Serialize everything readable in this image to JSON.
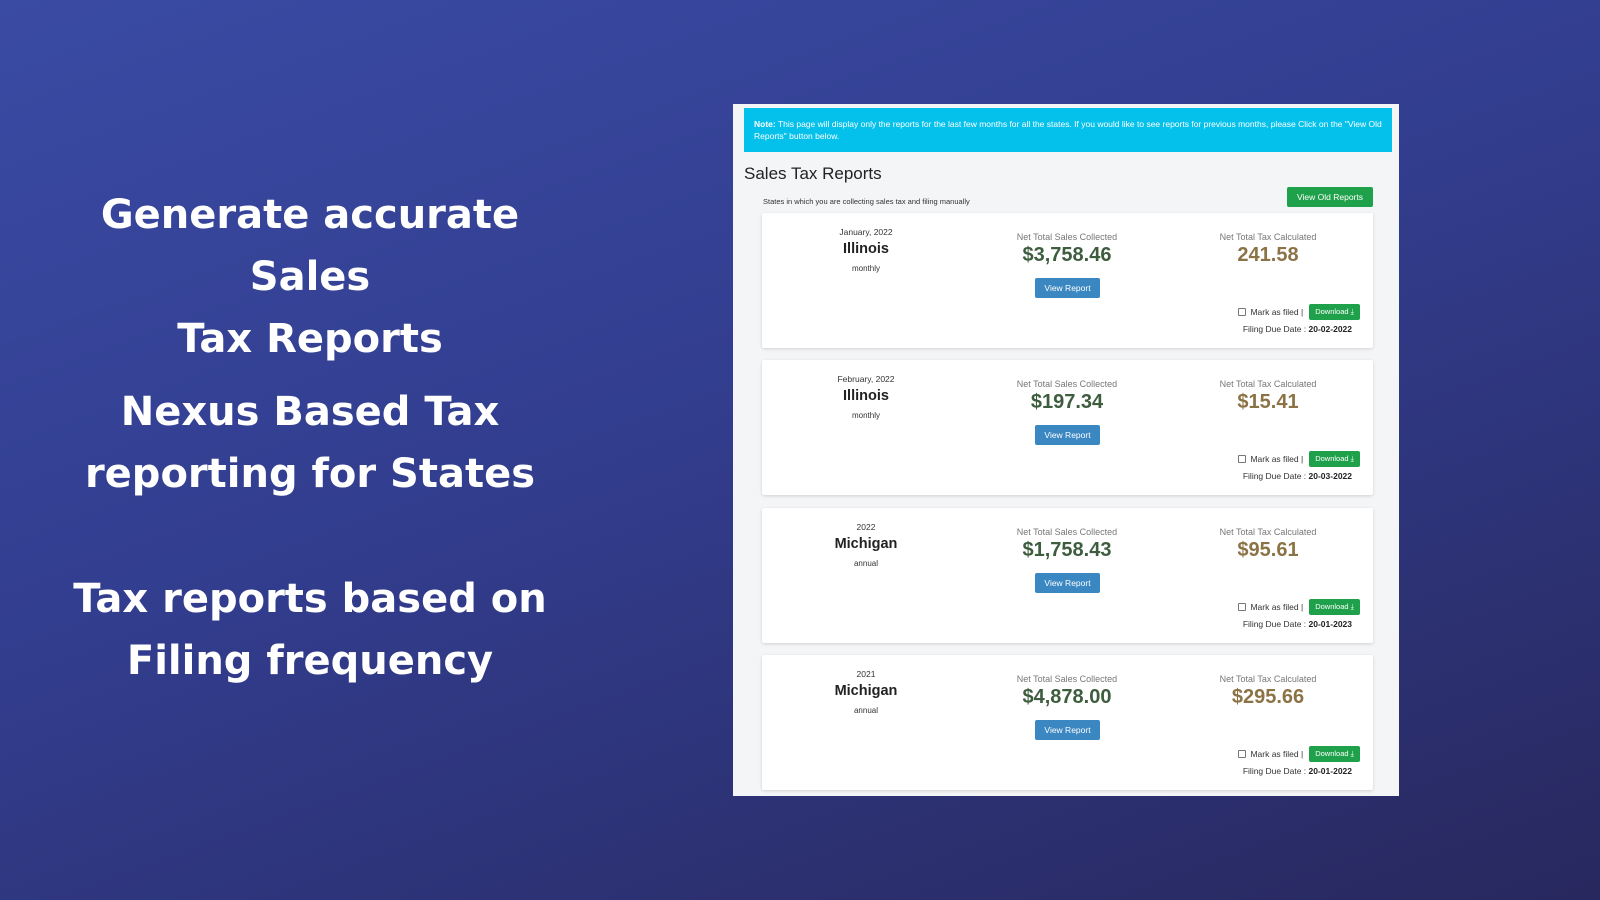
{
  "headlines": [
    [
      "Generate accurate Sales",
      "Tax Reports"
    ],
    [
      "Nexus Based Tax",
      "reporting for States"
    ],
    [
      "Tax reports based on",
      "Filing frequency"
    ]
  ],
  "note": {
    "label": "Note:",
    "text": " This page will display only the reports for the last few months for all the states. If you would like to see reports for previous months, please Click on the \"View Old Reports\" button below."
  },
  "page_title": "Sales Tax Reports",
  "subtitle": "States in which you are collecting sales tax and filing manually",
  "view_old_reports": "View Old Reports",
  "labels": {
    "sales": "Net Total Sales Collected",
    "tax": "Net Total Tax Calculated",
    "view_report": "View Report",
    "mark_filed": "Mark as filed |",
    "download": "Download",
    "due": "Filing Due Date : "
  },
  "reports": [
    {
      "period": "January, 2022",
      "state": "Illinois",
      "frequency": "monthly",
      "sales": "$3,758.46",
      "tax": "241.58",
      "due": "20-02-2022"
    },
    {
      "period": "February, 2022",
      "state": "Illinois",
      "frequency": "monthly",
      "sales": "$197.34",
      "tax": "$15.41",
      "due": "20-03-2022"
    },
    {
      "period": "2022",
      "state": "Michigan",
      "frequency": "annual",
      "sales": "$1,758.43",
      "tax": "$95.61",
      "due": "20-01-2023"
    },
    {
      "period": "2021",
      "state": "Michigan",
      "frequency": "annual",
      "sales": "$4,878.00",
      "tax": "$295.66",
      "due": "20-01-2022"
    }
  ],
  "colors": {
    "note_bg": "#04c1ec",
    "green_button": "#1ea14a",
    "blue_button": "#3a87c2",
    "sales_amount": "#3e5d3f",
    "tax_amount": "#8b7346"
  }
}
